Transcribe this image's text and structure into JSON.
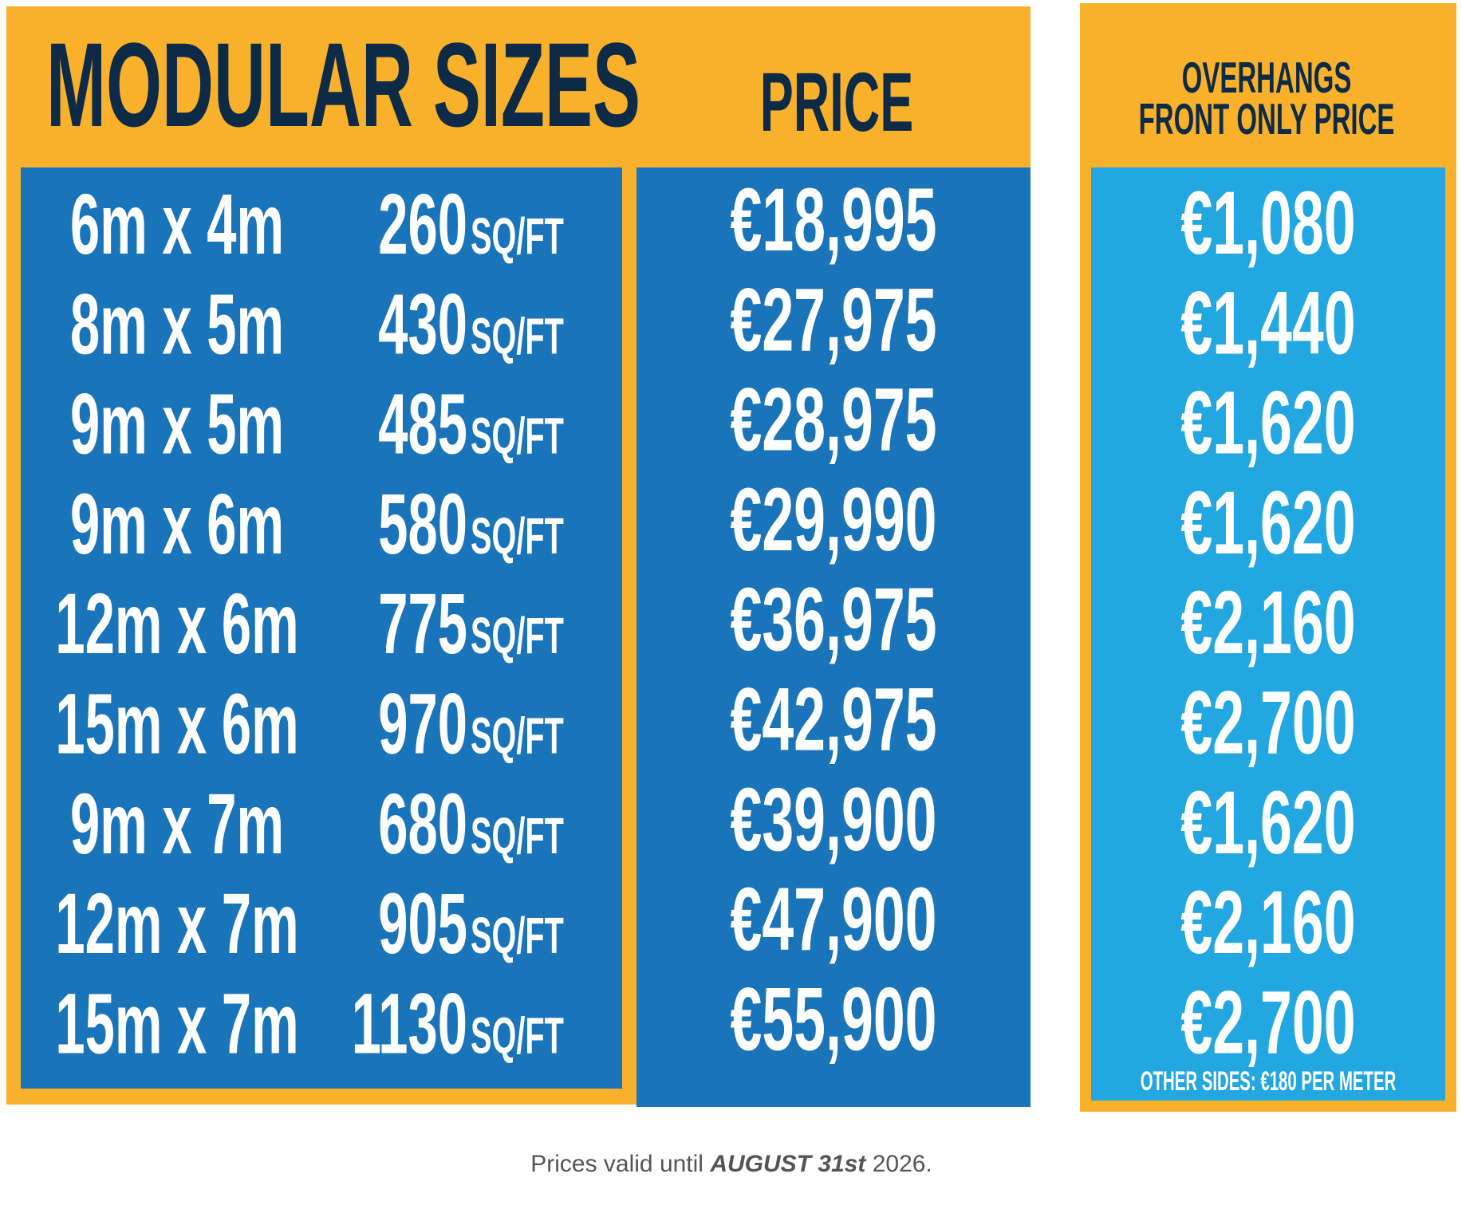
{
  "header": {
    "title": "MODULAR SIZES",
    "price": "PRICE",
    "overhangs": [
      "OVERHANGS",
      "FRONT ONLY PRICE"
    ]
  },
  "unit": "SQ/FT",
  "rows": [
    {
      "size": "6m x 4m",
      "area": "260",
      "price": "€18,995",
      "overhang": "€1,080"
    },
    {
      "size": "8m x 5m",
      "area": "430",
      "price": "€27,975",
      "overhang": "€1,440"
    },
    {
      "size": "9m x 5m",
      "area": "485",
      "price": "€28,975",
      "overhang": "€1,620"
    },
    {
      "size": "9m x 6m",
      "area": "580",
      "price": "€29,990",
      "overhang": "€1,620"
    },
    {
      "size": "12m x 6m",
      "area": "775",
      "price": "€36,975",
      "overhang": "€2,160"
    },
    {
      "size": "15m x 6m",
      "area": "970",
      "price": "€42,975",
      "overhang": "€2,700"
    },
    {
      "size": "9m x 7m",
      "area": "680",
      "price": "€39,900",
      "overhang": "€1,620"
    },
    {
      "size": "12m x 7m",
      "area": "905",
      "price": "€47,900",
      "overhang": "€2,160"
    },
    {
      "size": "15m x 7m",
      "area": "1130",
      "price": "€55,900",
      "overhang": "€2,700"
    }
  ],
  "note": "OTHER SIDES: €180 PER METER",
  "footer": {
    "before": "Prices valid until ",
    "date": "AUGUST 31st",
    "after": " 2026."
  }
}
